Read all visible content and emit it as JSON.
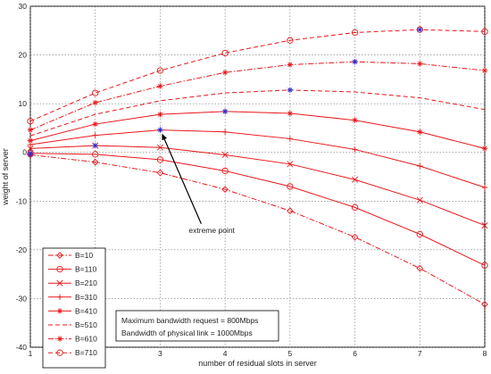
{
  "chart_data": {
    "type": "line",
    "title": "",
    "xlabel": "number of residual slots in server",
    "ylabel": "weight of server",
    "xlim": [
      1,
      8
    ],
    "ylim": [
      -40,
      30
    ],
    "xticks": [
      1,
      2,
      3,
      4,
      5,
      6,
      7,
      8
    ],
    "yticks": [
      -40,
      -30,
      -20,
      -10,
      0,
      10,
      20,
      30
    ],
    "x": [
      1,
      2,
      3,
      4,
      5,
      6,
      7,
      8
    ],
    "grid": true,
    "legend_position": "bottom-left",
    "series_color": "#e8171c",
    "marker_color_highlight": "#2b2bd6",
    "series": [
      {
        "name": "B=10",
        "marker": "diamond",
        "dash": "dashdot",
        "values": [
          -0.5,
          -2.0,
          -4.2,
          -7.6,
          -12.0,
          -17.4,
          -23.8,
          -31.2
        ],
        "highlight": 0
      },
      {
        "name": "B=110",
        "marker": "circle",
        "dash": "solid",
        "values": [
          -0.2,
          -0.4,
          -1.5,
          -3.8,
          -7.0,
          -11.3,
          -16.8,
          -23.2
        ],
        "highlight": 0
      },
      {
        "name": "B=210",
        "marker": "x",
        "dash": "solid",
        "values": [
          0.8,
          1.4,
          1.0,
          -0.5,
          -2.4,
          -5.6,
          -9.8,
          -15.0
        ],
        "highlight": 1
      },
      {
        "name": "B=310",
        "marker": "plus",
        "dash": "solid",
        "values": [
          1.6,
          3.5,
          4.6,
          4.2,
          2.8,
          0.6,
          -2.8,
          -7.2
        ],
        "highlight": 2
      },
      {
        "name": "B=410",
        "marker": "star",
        "dash": "solid",
        "values": [
          2.4,
          5.8,
          7.8,
          8.4,
          8.0,
          6.6,
          4.2,
          0.8
        ],
        "highlight": 3
      },
      {
        "name": "B=510",
        "marker": "none",
        "dash": "dashed",
        "values": [
          3.4,
          7.8,
          10.6,
          12.2,
          12.8,
          12.4,
          11.2,
          8.8
        ],
        "highlight": 4
      },
      {
        "name": "B=610",
        "marker": "star",
        "dash": "dashdot",
        "values": [
          4.6,
          10.2,
          13.6,
          16.4,
          18.0,
          18.6,
          18.2,
          16.8
        ],
        "highlight": 5
      },
      {
        "name": "B=710",
        "marker": "circle",
        "dash": "dashed",
        "values": [
          6.4,
          12.2,
          16.8,
          20.4,
          23.0,
          24.6,
          25.2,
          24.8
        ],
        "highlight": 6
      }
    ],
    "annotations": {
      "arrow_text": "extreme point",
      "arrow_target": {
        "x": 3,
        "y": 4.6
      },
      "arrow_text_at": {
        "x": 3.55,
        "y": -16.5
      },
      "info_box_lines": [
        "Maximum bandwidth request = 800Mbps",
        "Bandwidth of  physical link = 1000Mbps"
      ]
    }
  }
}
